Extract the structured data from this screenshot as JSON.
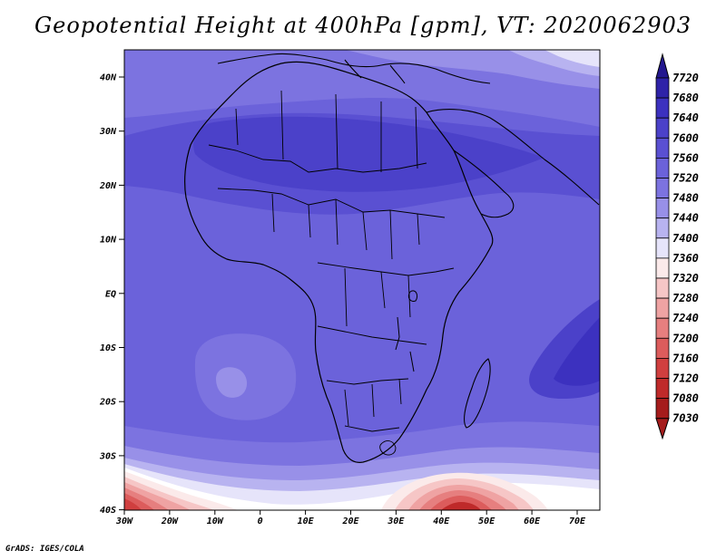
{
  "title": "Geopotential Height at 400hPa [gpm], VT: 2020062903",
  "credit": "GrADS: IGES/COLA",
  "map": {
    "region": "Africa",
    "lon_range": [
      -30,
      76
    ],
    "lat_range": [
      -40,
      46
    ],
    "lat_ticks": [
      "40N",
      "30N",
      "20N",
      "10N",
      "EQ",
      "10S",
      "20S",
      "30S",
      "40S"
    ],
    "lon_ticks": [
      "30W",
      "20W",
      "10W",
      "0",
      "10E",
      "20E",
      "30E",
      "40E",
      "50E",
      "60E",
      "70E"
    ]
  },
  "colorbar": {
    "levels": [
      "7720",
      "7680",
      "7640",
      "7600",
      "7560",
      "7520",
      "7480",
      "7440",
      "7400",
      "7360",
      "7320",
      "7280",
      "7240",
      "7200",
      "7160",
      "7120",
      "7080",
      "7030"
    ],
    "colors": [
      "#23178f",
      "#2e22a8",
      "#3c31bf",
      "#4b41c9",
      "#5a50d2",
      "#6b62da",
      "#7c73e0",
      "#9890e8",
      "#b8b3f0",
      "#e6e4fa",
      "#fbeaea",
      "#f6c6c6",
      "#efa3a3",
      "#e67f7f",
      "#dc5c5c",
      "#d03f3f",
      "#bf2a2a",
      "#a51c1c"
    ]
  }
}
